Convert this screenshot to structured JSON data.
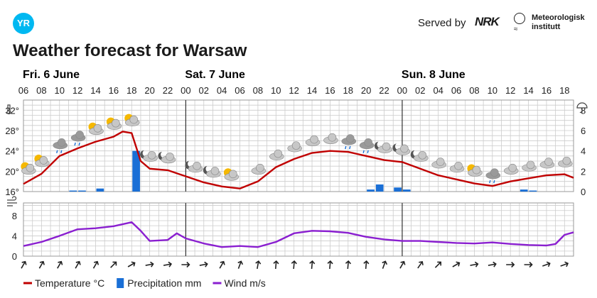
{
  "header": {
    "logo_text": "YR",
    "title": "Weather forecast for Warsaw",
    "served_by": "Served by",
    "nrk": "NRK",
    "met_line1": "Meteorologisk",
    "met_line2": "institutt"
  },
  "chart_data": {
    "type": "line",
    "days": [
      {
        "label": "Fri. 6 June",
        "start_hour": 6
      },
      {
        "label": "Sat. 7 June",
        "start_hour": 24
      },
      {
        "label": "Sun. 8 June",
        "start_hour": 48
      }
    ],
    "x_ticks": [
      "06",
      "08",
      "10",
      "12",
      "14",
      "16",
      "18",
      "20",
      "22",
      "00",
      "02",
      "04",
      "06",
      "08",
      "10",
      "12",
      "14",
      "16",
      "18",
      "20",
      "22",
      "00",
      "02",
      "04",
      "06",
      "08",
      "10",
      "12",
      "14",
      "16",
      "18"
    ],
    "x_range_hours": [
      6,
      67
    ],
    "temperature_axis": {
      "unit_icon": "thermometer-icon",
      "ticks": [
        "16°",
        "20°",
        "24°",
        "28°",
        "32°"
      ],
      "range": [
        16,
        34
      ]
    },
    "precipitation_axis": {
      "unit_icon": "umbrella-icon",
      "ticks": [
        "0",
        "2",
        "4",
        "6",
        "8"
      ],
      "range": [
        0,
        9
      ]
    },
    "wind_axis": {
      "unit_icon": "wind-icon",
      "ticks": [
        "0",
        "4",
        "8"
      ],
      "range": [
        0,
        10.5
      ]
    },
    "temperature": [
      [
        6,
        17.5
      ],
      [
        8,
        19.5
      ],
      [
        10,
        23
      ],
      [
        12,
        24.5
      ],
      [
        14,
        25.8
      ],
      [
        16,
        26.8
      ],
      [
        17,
        27.8
      ],
      [
        18,
        27.5
      ],
      [
        19,
        22
      ],
      [
        20,
        20.5
      ],
      [
        22,
        20.2
      ],
      [
        24,
        19
      ],
      [
        26,
        17.8
      ],
      [
        28,
        17
      ],
      [
        30,
        16.6
      ],
      [
        32,
        18
      ],
      [
        34,
        20.8
      ],
      [
        36,
        22.4
      ],
      [
        38,
        23.6
      ],
      [
        40,
        24
      ],
      [
        42,
        23.8
      ],
      [
        44,
        23
      ],
      [
        46,
        22.2
      ],
      [
        48,
        21.8
      ],
      [
        50,
        20.5
      ],
      [
        52,
        19.2
      ],
      [
        54,
        18.4
      ],
      [
        56,
        17.6
      ],
      [
        58,
        17.1
      ],
      [
        60,
        18
      ],
      [
        62,
        18.6
      ],
      [
        64,
        19.2
      ],
      [
        66,
        19.4
      ],
      [
        67,
        18.7
      ]
    ],
    "precipitation": [
      [
        11,
        0.1
      ],
      [
        12,
        0.1
      ],
      [
        14,
        0.3
      ],
      [
        18,
        4
      ],
      [
        44,
        0.2
      ],
      [
        45,
        0.7
      ],
      [
        47,
        0.4
      ],
      [
        48,
        0.2
      ],
      [
        61,
        0.2
      ],
      [
        62,
        0.1
      ]
    ],
    "wind": [
      [
        6,
        2
      ],
      [
        8,
        2.8
      ],
      [
        10,
        4
      ],
      [
        12,
        5.3
      ],
      [
        14,
        5.5
      ],
      [
        16,
        5.9
      ],
      [
        18,
        6.7
      ],
      [
        19,
        5
      ],
      [
        20,
        3
      ],
      [
        22,
        3.2
      ],
      [
        23,
        4.5
      ],
      [
        24,
        3.5
      ],
      [
        26,
        2.5
      ],
      [
        28,
        1.8
      ],
      [
        30,
        2
      ],
      [
        32,
        1.8
      ],
      [
        34,
        2.8
      ],
      [
        36,
        4.5
      ],
      [
        38,
        5
      ],
      [
        40,
        4.9
      ],
      [
        42,
        4.6
      ],
      [
        44,
        3.8
      ],
      [
        46,
        3.3
      ],
      [
        48,
        3
      ],
      [
        50,
        3
      ],
      [
        52,
        2.8
      ],
      [
        54,
        2.6
      ],
      [
        56,
        2.5
      ],
      [
        58,
        2.7
      ],
      [
        60,
        2.4
      ],
      [
        62,
        2.2
      ],
      [
        64,
        2.1
      ],
      [
        65,
        2.4
      ],
      [
        66,
        4.2
      ],
      [
        67,
        4.7
      ]
    ],
    "weather_symbols": [
      [
        6.5,
        "sun-cloud-icon"
      ],
      [
        8,
        "sun-cloud-icon"
      ],
      [
        10,
        "cloud-rain-icon"
      ],
      [
        12,
        "cloud-rain-icon"
      ],
      [
        14,
        "sun-cloud-icon"
      ],
      [
        16,
        "sun-cloud-icon"
      ],
      [
        18,
        "sun-cloud-icon"
      ],
      [
        20,
        "moon-cloud-icon"
      ],
      [
        22,
        "moon-cloud-icon"
      ],
      [
        25,
        "moon-cloud-icon"
      ],
      [
        27,
        "moon-cloud-icon"
      ],
      [
        29,
        "sun-cloud-icon"
      ],
      [
        32,
        "cloud-icon"
      ],
      [
        34,
        "cloud-icon"
      ],
      [
        36,
        "cloud-icon"
      ],
      [
        38,
        "cloud-icon"
      ],
      [
        40,
        "cloud-icon"
      ],
      [
        42,
        "cloud-rain-icon"
      ],
      [
        44,
        "cloud-rain-icon"
      ],
      [
        46,
        "moon-cloud-icon"
      ],
      [
        48,
        "moon-cloud-icon"
      ],
      [
        50,
        "moon-cloud-icon"
      ],
      [
        52,
        "cloud-icon"
      ],
      [
        54,
        "cloud-icon"
      ],
      [
        56,
        "sun-cloud-icon"
      ],
      [
        58,
        "cloud-rain-icon"
      ],
      [
        60,
        "cloud-icon"
      ],
      [
        62,
        "cloud-icon"
      ],
      [
        64,
        "cloud-icon"
      ],
      [
        66,
        "cloud-icon"
      ]
    ],
    "wind_direction_deg": [
      30,
      30,
      30,
      30,
      30,
      45,
      60,
      80,
      80,
      90,
      80,
      30,
      20,
      10,
      5,
      5,
      5,
      5,
      5,
      5,
      20,
      30,
      35,
      45,
      60,
      80,
      80,
      90,
      90,
      70,
      70
    ],
    "legend": [
      {
        "name": "Temperature °C",
        "color": "#c00000",
        "kind": "line"
      },
      {
        "name": "Precipitation mm",
        "color": "#1a6fd6",
        "kind": "bar"
      },
      {
        "name": "Wind m/s",
        "color": "#8a1fd0",
        "kind": "line"
      }
    ],
    "grid": true,
    "colors": {
      "temperature": "#c00000",
      "precipitation": "#1a6fd6",
      "wind": "#8a1fd0",
      "grid": "#cccccc",
      "day_divider": "#333333",
      "icon_cloud": "#c7c7c7",
      "icon_sun": "#f5b800"
    }
  }
}
